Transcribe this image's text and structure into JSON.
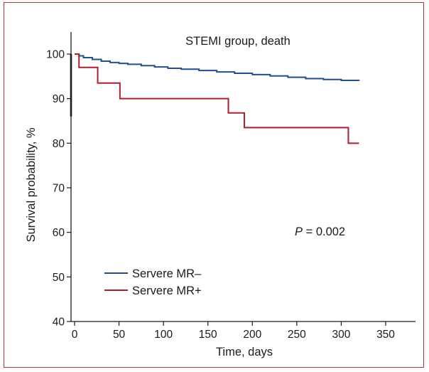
{
  "chart_data": {
    "type": "line",
    "title": "STEMI group, death",
    "xlabel": "Time, days",
    "ylabel": "Survival probability, %",
    "xlim": [
      0,
      380
    ],
    "ylim": [
      40,
      105
    ],
    "xticks": [
      0,
      50,
      100,
      150,
      200,
      250,
      300,
      350
    ],
    "yticks": [
      40,
      50,
      60,
      70,
      80,
      90,
      100
    ],
    "grid": false,
    "legend_position": "bottom-left",
    "annotation": {
      "italic": "P",
      "rest": " = 0.002",
      "x": 300,
      "y": 60
    },
    "series": [
      {
        "name": "Servere MR–",
        "color": "#1f4e99",
        "step": true,
        "x": [
          0,
          5,
          10,
          20,
          30,
          40,
          50,
          60,
          75,
          90,
          105,
          120,
          140,
          160,
          180,
          200,
          220,
          240,
          260,
          280,
          300,
          320
        ],
        "y": [
          100,
          99.6,
          99.2,
          98.8,
          98.4,
          98.1,
          97.9,
          97.7,
          97.4,
          97.1,
          96.8,
          96.6,
          96.3,
          96.0,
          95.7,
          95.4,
          95.1,
          94.8,
          94.5,
          94.3,
          94.1,
          94.0
        ]
      },
      {
        "name": "Servere MR+",
        "color": "#b01e2d",
        "step": true,
        "x": [
          0,
          5,
          26,
          51,
          173,
          191,
          308,
          320
        ],
        "y": [
          100,
          97,
          93.5,
          90,
          86.8,
          83.5,
          80,
          80
        ]
      }
    ]
  }
}
